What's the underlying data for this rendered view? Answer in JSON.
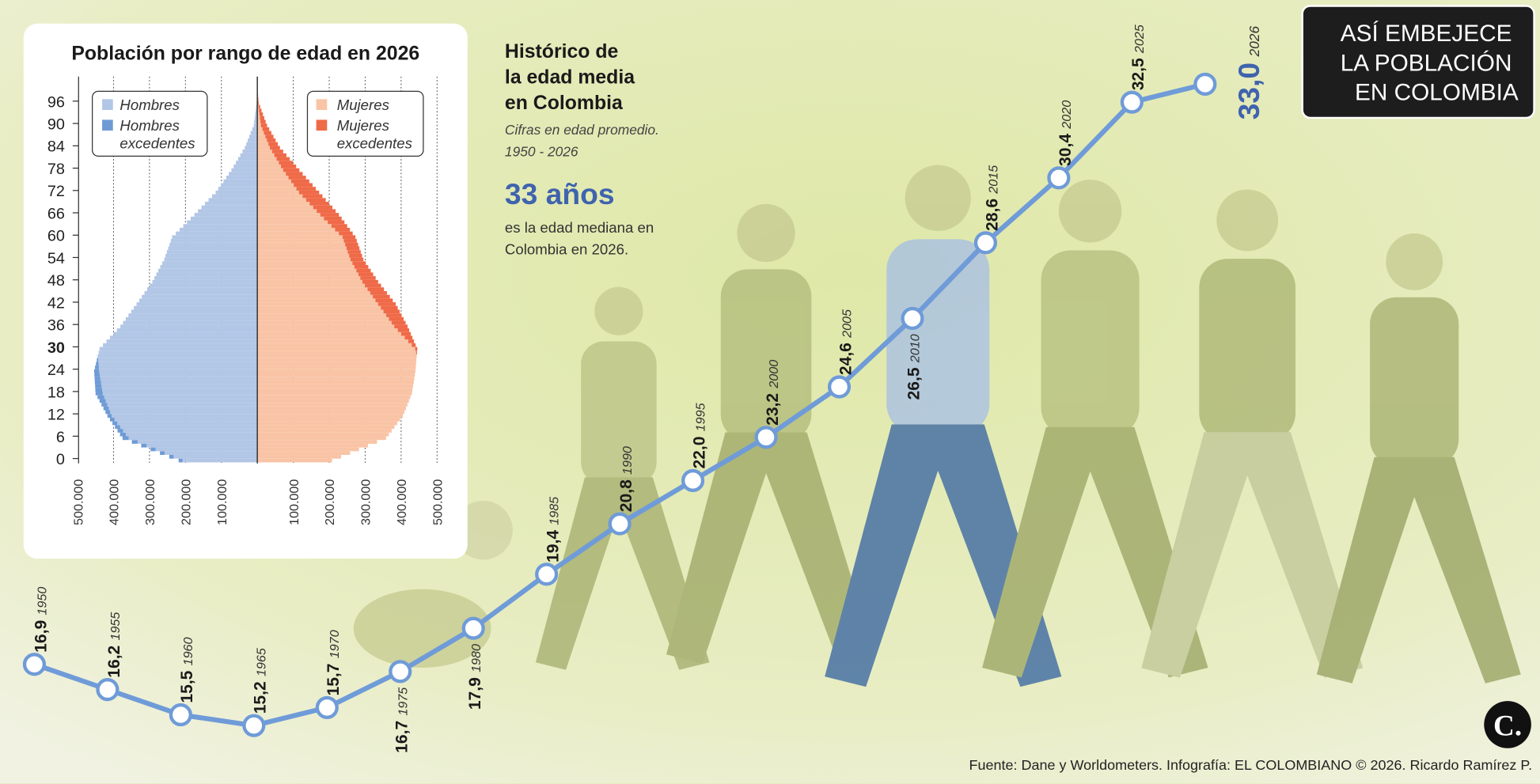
{
  "colors": {
    "line": "#6f9bd8",
    "men": "#b2c6e6",
    "men_excess": "#6e9bd6",
    "women": "#f9c4a6",
    "women_excess": "#ef6a48",
    "accent": "#3f63ad",
    "title_box": "#1d1d1d"
  },
  "title_box": {
    "lines": [
      "ASÍ EMBEJECE",
      "LA POBLACIÓN",
      "EN COLOMBIA"
    ]
  },
  "intro": {
    "title_lines": [
      "Histórico de",
      "la edad media",
      "en Colombia"
    ],
    "subtitle_lines": [
      "Cifras en edad promedio.",
      "1950 - 2026"
    ],
    "highlight": "33 años",
    "desc_lines": [
      "es la edad mediana en",
      "Colombia en 2026."
    ]
  },
  "footer": "Fuente: Dane y Worldometers. Infografía: EL COLOMBIANO © 2026. Ricardo Ramírez P.",
  "logo": "C.",
  "chart_data": [
    {
      "type": "bar",
      "subtype": "population-pyramid",
      "title": "Población por rango de edad en 2026",
      "legend": {
        "left": [
          "Hombres",
          "Hombres excedentes"
        ],
        "right": [
          "Mujeres",
          "Mujeres excedentes"
        ]
      },
      "age_ticks": [
        "96",
        "90",
        "84",
        "78",
        "72",
        "66",
        "60",
        "54",
        "48",
        "42",
        "36",
        "30",
        "24",
        "18",
        "12",
        "6",
        "0"
      ],
      "highlight_tick": "30",
      "x_ticks_left": [
        "500.000",
        "400.000",
        "300.000",
        "200.000",
        "100.000"
      ],
      "x_ticks_right": [
        "100.000",
        "200.000",
        "300.000",
        "400.000",
        "500.000"
      ],
      "xlim": [
        -500000,
        500000
      ],
      "ylim": [
        0,
        100
      ],
      "ages": [
        0,
        6,
        12,
        18,
        24,
        30,
        36,
        42,
        48,
        54,
        60,
        66,
        72,
        78,
        84,
        90,
        96,
        100
      ],
      "men": [
        219000,
        375000,
        417000,
        450000,
        454000,
        439000,
        381000,
        336000,
        292000,
        259000,
        237000,
        175000,
        116000,
        72000,
        35000,
        10000,
        2000,
        0
      ],
      "women": [
        208000,
        358000,
        405000,
        430000,
        440000,
        445000,
        418000,
        385000,
        336000,
        295000,
        273000,
        227000,
        172000,
        117000,
        63000,
        27000,
        4000,
        0
      ]
    },
    {
      "type": "line",
      "title": "Histórico de la edad media en Colombia",
      "x": [
        "1950",
        "1955",
        "1960",
        "1965",
        "1970",
        "1975",
        "1980",
        "1985",
        "1990",
        "1995",
        "2000",
        "2005",
        "2010",
        "2015",
        "2020",
        "2025",
        "2026"
      ],
      "values": [
        16.9,
        16.2,
        15.5,
        15.2,
        15.7,
        16.7,
        17.9,
        19.4,
        20.8,
        22.0,
        23.2,
        24.6,
        26.5,
        28.6,
        30.4,
        32.5,
        33.0
      ],
      "labels": [
        "16,9",
        "16,2",
        "15,5",
        "15,2",
        "15,7",
        "16,7",
        "17,9",
        "19,4",
        "20,8",
        "22,0",
        "23,2",
        "24,6",
        "26,5",
        "28,6",
        "30,4",
        "32,5",
        "33,0"
      ]
    }
  ]
}
